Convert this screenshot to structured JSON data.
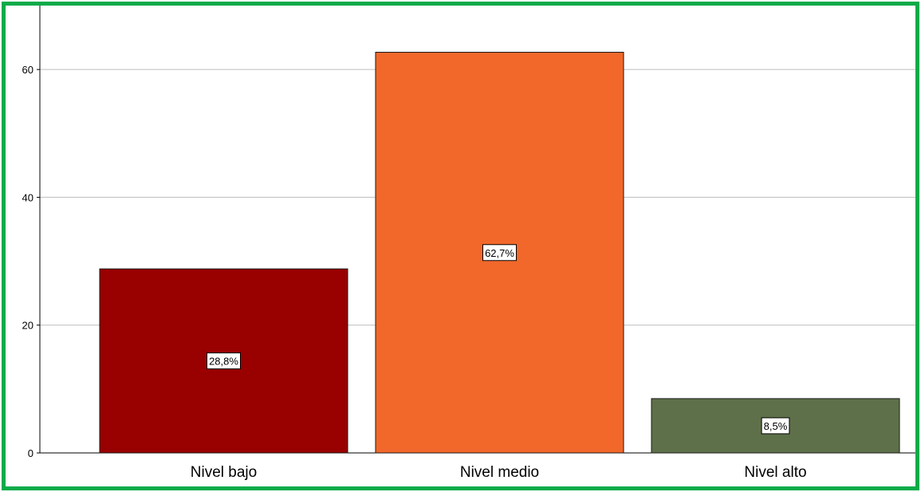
{
  "chart_data": {
    "type": "bar",
    "title": "",
    "xlabel": "",
    "ylabel": "",
    "categories": [
      "Nivel bajo",
      "Nivel medio",
      "Nivel alto"
    ],
    "values": [
      28.8,
      62.7,
      8.5
    ],
    "data_labels": [
      "28,8%",
      "62,7%",
      "8,5%"
    ],
    "colors": [
      "#990000",
      "#f2682b",
      "#5e7049"
    ],
    "ylim": [
      0,
      70
    ],
    "yticks": [
      0,
      20,
      40,
      60
    ],
    "ytick_labels": [
      "0",
      "20",
      "40",
      "60"
    ],
    "grid": true,
    "legend": "none",
    "frame_color": "#0aab4a"
  }
}
